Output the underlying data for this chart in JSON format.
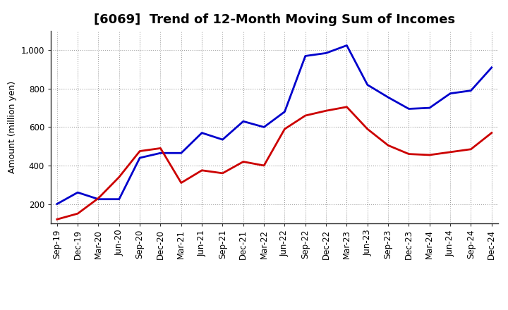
{
  "title": "[6069]  Trend of 12-Month Moving Sum of Incomes",
  "ylabel": "Amount (million yen)",
  "background_color": "#ffffff",
  "plot_bg_color": "#ffffff",
  "grid_color": "#999999",
  "x_labels": [
    "Sep-19",
    "Dec-19",
    "Mar-20",
    "Jun-20",
    "Sep-20",
    "Dec-20",
    "Mar-21",
    "Jun-21",
    "Sep-21",
    "Dec-21",
    "Mar-22",
    "Jun-22",
    "Sep-22",
    "Dec-22",
    "Mar-23",
    "Jun-23",
    "Sep-23",
    "Dec-23",
    "Mar-24",
    "Jun-24",
    "Sep-24",
    "Dec-24"
  ],
  "ordinary_income": [
    200,
    260,
    225,
    225,
    440,
    465,
    465,
    570,
    535,
    630,
    600,
    680,
    970,
    985,
    1025,
    820,
    755,
    695,
    700,
    775,
    790,
    910
  ],
  "net_income": [
    120,
    150,
    230,
    340,
    475,
    490,
    310,
    375,
    360,
    420,
    400,
    590,
    660,
    685,
    705,
    590,
    505,
    460,
    455,
    470,
    485,
    570
  ],
  "ordinary_color": "#0000cc",
  "net_color": "#cc0000",
  "line_width": 2.0,
  "ylim_min": 100,
  "ylim_max": 1100,
  "yticks": [
    200,
    400,
    600,
    800,
    1000
  ],
  "ytick_labels": [
    "200",
    "400",
    "600",
    "800",
    "1,000"
  ],
  "title_fontsize": 13,
  "label_fontsize": 9,
  "tick_fontsize": 8.5
}
